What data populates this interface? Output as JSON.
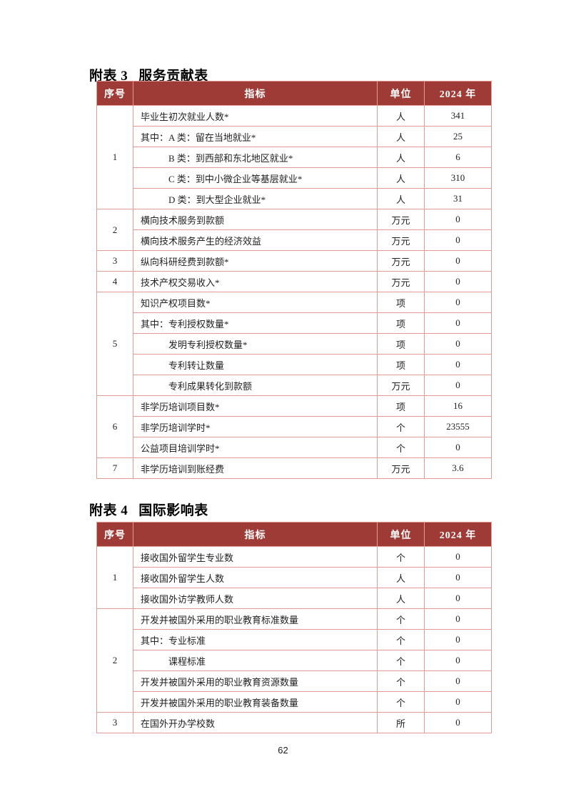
{
  "theme": {
    "header-bg": "#9E3B37",
    "header-text": "#FFFFFF",
    "border": "#E39A93",
    "text": "#222222",
    "page-bg": "#FFFFFF"
  },
  "page": {
    "number": "62"
  },
  "tables": [
    {
      "title_prefix": "附表 3",
      "title_text": "服务贡献表",
      "columns": [
        "序号",
        "指标",
        "单位",
        "2024 年"
      ],
      "rows": [
        {
          "no": "1",
          "span": 5,
          "indicator": "毕业生初次就业人数*",
          "unit": "人",
          "value": "341"
        },
        {
          "indicator": "其中：A 类：留在当地就业*",
          "unit": "人",
          "value": "25"
        },
        {
          "indicator": "B 类：到西部和东北地区就业*",
          "unit": "人",
          "value": "6",
          "indent": true
        },
        {
          "indicator": "C 类：到中小微企业等基层就业*",
          "unit": "人",
          "value": "310",
          "indent": true
        },
        {
          "indicator": "D 类：到大型企业就业*",
          "unit": "人",
          "value": "31",
          "indent": true
        },
        {
          "no": "2",
          "span": 2,
          "indicator": "横向技术服务到款额",
          "unit": "万元",
          "value": "0"
        },
        {
          "indicator": "横向技术服务产生的经济效益",
          "unit": "万元",
          "value": "0"
        },
        {
          "no": "3",
          "span": 1,
          "indicator": "纵向科研经费到款额*",
          "unit": "万元",
          "value": "0"
        },
        {
          "no": "4",
          "span": 1,
          "indicator": "技术产权交易收入*",
          "unit": "万元",
          "value": "0"
        },
        {
          "no": "5",
          "span": 5,
          "indicator": "知识产权项目数*",
          "unit": "项",
          "value": "0"
        },
        {
          "indicator": "其中：专利授权数量*",
          "unit": "项",
          "value": "0"
        },
        {
          "indicator": "发明专利授权数量*",
          "unit": "项",
          "value": "0",
          "indent": true
        },
        {
          "indicator": "专利转让数量",
          "unit": "项",
          "value": "0",
          "indent": true
        },
        {
          "indicator": "专利成果转化到款额",
          "unit": "万元",
          "value": "0",
          "indent": true
        },
        {
          "no": "6",
          "span": 3,
          "indicator": "非学历培训项目数*",
          "unit": "项",
          "value": "16"
        },
        {
          "indicator": "非学历培训学时*",
          "unit": "个",
          "value": "23555"
        },
        {
          "indicator": "公益项目培训学时*",
          "unit": "个",
          "value": "0"
        },
        {
          "no": "7",
          "span": 1,
          "indicator": "非学历培训到账经费",
          "unit": "万元",
          "value": "3.6"
        }
      ]
    },
    {
      "title_prefix": "附表 4",
      "title_text": "国际影响表",
      "columns": [
        "序号",
        "指标",
        "单位",
        "2024 年"
      ],
      "rows": [
        {
          "no": "1",
          "span": 3,
          "indicator": "接收国外留学生专业数",
          "unit": "个",
          "value": "0"
        },
        {
          "indicator": "接收国外留学生人数",
          "unit": "人",
          "value": "0"
        },
        {
          "indicator": "接收国外访学教师人数",
          "unit": "人",
          "value": "0"
        },
        {
          "no": "2",
          "span": 5,
          "indicator": "开发并被国外采用的职业教育标准数量",
          "unit": "个",
          "value": "0"
        },
        {
          "indicator": "其中：专业标准",
          "unit": "个",
          "value": "0"
        },
        {
          "indicator": "课程标准",
          "unit": "个",
          "value": "0",
          "indent": true
        },
        {
          "indicator": "开发并被国外采用的职业教育资源数量",
          "unit": "个",
          "value": "0"
        },
        {
          "indicator": "开发并被国外采用的职业教育装备数量",
          "unit": "个",
          "value": "0"
        },
        {
          "no": "3",
          "span": 1,
          "indicator": "在国外开办学校数",
          "unit": "所",
          "value": "0"
        }
      ]
    }
  ]
}
